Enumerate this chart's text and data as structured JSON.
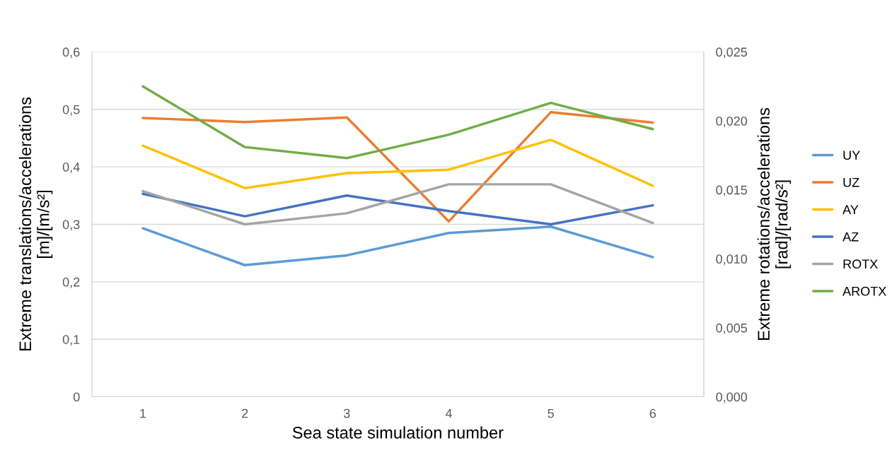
{
  "chart_data": {
    "type": "line",
    "xlabel": "Sea state simulation number",
    "ylabel": "Extreme translations/accelerations\n[m]/[m/s²]",
    "y2label": "Extreme rotations/accelerations\n[rad]/[rad/s²]",
    "categories": [
      "1",
      "2",
      "3",
      "4",
      "5",
      "6"
    ],
    "series": [
      {
        "name": "UY",
        "color": "#5b9bd5",
        "values": [
          0.293,
          0.229,
          0.246,
          0.285,
          0.296,
          0.243
        ]
      },
      {
        "name": "UZ",
        "color": "#ed7d31",
        "values": [
          0.485,
          0.478,
          0.486,
          0.305,
          0.495,
          0.477
        ]
      },
      {
        "name": "AY",
        "color": "#ffc000",
        "values": [
          0.437,
          0.363,
          0.389,
          0.395,
          0.447,
          0.367
        ]
      },
      {
        "name": "AZ",
        "color": "#4472c4",
        "values": [
          0.353,
          0.314,
          0.35,
          0.323,
          0.3,
          0.333
        ]
      },
      {
        "name": "ROTX",
        "color": "#a5a5a5",
        "axis": "y2",
        "values": [
          0.0149,
          0.0125,
          0.0133,
          0.0154,
          0.0154,
          0.0126
        ]
      },
      {
        "name": "AROTX",
        "color": "#70ad47",
        "axis": "y2",
        "values": [
          0.0225,
          0.0181,
          0.0173,
          0.019,
          0.0213,
          0.0194
        ]
      }
    ],
    "ylim": [
      0,
      0.6
    ],
    "yticks": [
      0,
      {
        "value": 0.1,
        "label": "0,1"
      },
      {
        "value": 0.2,
        "label": "0,2"
      },
      {
        "value": 0.3,
        "label": "0,3"
      },
      {
        "value": 0.4,
        "label": "0,4"
      },
      {
        "value": 0.5,
        "label": "0,5"
      },
      {
        "value": 0.6,
        "label": "0,6"
      }
    ],
    "y2lim": [
      0,
      0.025
    ],
    "y2ticks": [
      {
        "value": 0,
        "label": "0,000"
      },
      {
        "value": 0.005,
        "label": "0,005"
      },
      {
        "value": 0.01,
        "label": "0,010"
      },
      {
        "value": 0.015,
        "label": "0,015"
      },
      {
        "value": 0.02,
        "label": "0,020"
      },
      {
        "value": 0.025,
        "label": "0,025"
      }
    ],
    "grid": "y",
    "legend": "right",
    "marker": "none",
    "line_style": "solid"
  }
}
